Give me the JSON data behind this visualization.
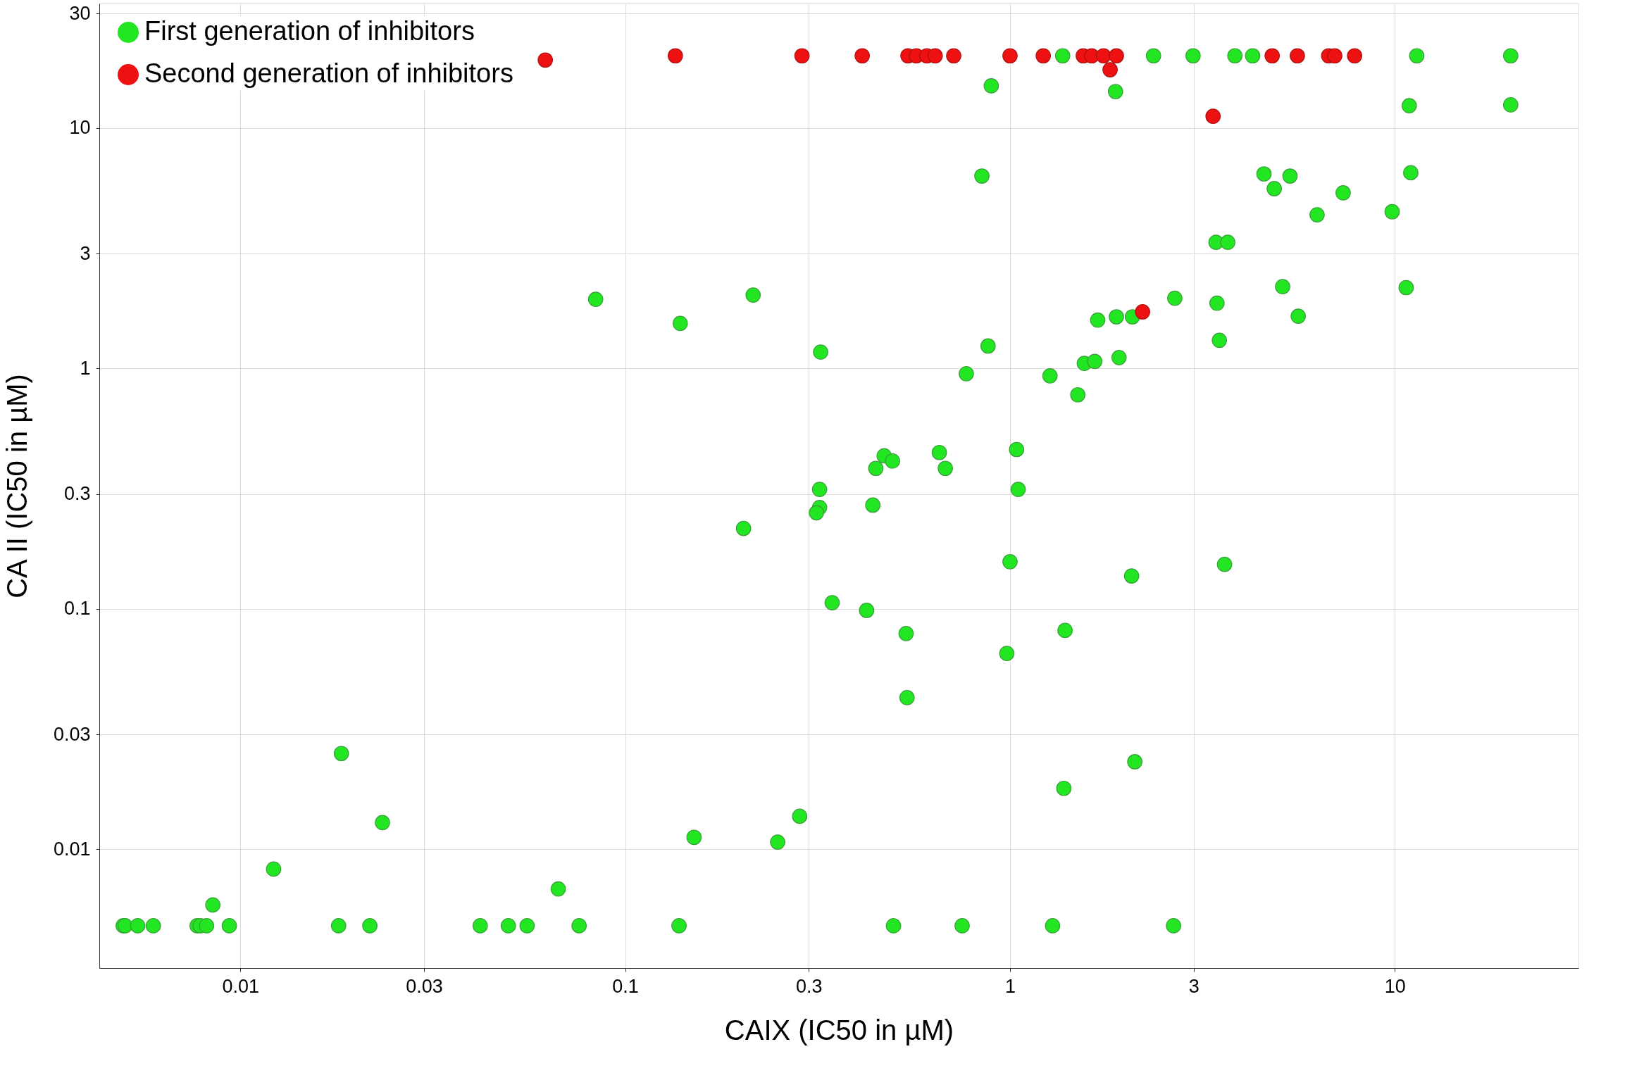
{
  "chart_data": {
    "type": "scatter",
    "xlabel": "CAIX (IC50 in µM)",
    "ylabel": "CA II (IC50 in µM)",
    "log": "xy",
    "grid": true,
    "legend": "top left",
    "marker": "circle",
    "xlim": [
      0.0043,
      30
    ],
    "ylim": [
      0.0032,
      33
    ],
    "xticks": [
      0.01,
      0.03,
      0.1,
      0.3,
      1,
      3,
      10
    ],
    "yticks": [
      0.01,
      0.03,
      0.1,
      0.3,
      1,
      3,
      10,
      30
    ],
    "series": [
      {
        "name": "First generation of inhibitors",
        "color": "#22e622",
        "x": [
          1.37,
          2.36,
          2.99,
          3.84,
          4.27,
          11.4,
          20.0,
          0.894,
          1.88,
          10.9,
          20.0,
          0.845,
          4.57,
          4.86,
          5.34,
          11.0,
          7.34,
          6.28,
          9.84,
          3.43,
          3.68,
          0.0838,
          0.215,
          0.139,
          2.68,
          3.45,
          5.11,
          10.7,
          5.61,
          1.69,
          1.89,
          2.08,
          0.877,
          3.5,
          0.322,
          0.77,
          1.27,
          1.56,
          1.66,
          1.92,
          1.5,
          1.04,
          0.471,
          0.495,
          0.655,
          0.448,
          0.679,
          0.32,
          1.05,
          0.32,
          0.314,
          0.44,
          0.203,
          1.0,
          3.61,
          2.07,
          0.345,
          0.424,
          0.537,
          1.39,
          0.981,
          0.54,
          0.0183,
          2.11,
          0.0234,
          1.38,
          0.284,
          0.151,
          0.249,
          0.0122,
          0.00848,
          0.067,
          0.00496,
          0.00502,
          0.00541,
          0.00594,
          0.00772,
          0.00787,
          0.00817,
          0.00936,
          0.018,
          0.0217,
          0.042,
          0.0497,
          0.0556,
          0.0759,
          0.138,
          0.498,
          0.751,
          1.29,
          2.66
        ],
        "values": [
          20,
          20,
          20,
          20,
          20,
          20,
          20,
          15.0,
          14.2,
          12.4,
          12.5,
          6.32,
          6.45,
          5.6,
          6.32,
          6.52,
          5.38,
          4.36,
          4.49,
          3.35,
          3.35,
          1.94,
          2.02,
          1.54,
          1.96,
          1.87,
          2.19,
          2.17,
          1.65,
          1.59,
          1.64,
          1.64,
          1.24,
          1.31,
          1.17,
          0.951,
          0.932,
          1.05,
          1.07,
          1.11,
          0.777,
          0.46,
          0.433,
          0.412,
          0.447,
          0.384,
          0.384,
          0.314,
          0.314,
          0.264,
          0.251,
          0.27,
          0.216,
          0.157,
          0.153,
          0.137,
          0.106,
          0.0985,
          0.0789,
          0.0813,
          0.0652,
          0.0427,
          0.025,
          0.0231,
          0.0129,
          0.0179,
          0.0137,
          0.0112,
          0.0107,
          0.00826,
          0.00586,
          0.00683,
          0.0048,
          0.0048,
          0.0048,
          0.0048,
          0.0048,
          0.0048,
          0.0048,
          0.0048,
          0.0048,
          0.0048,
          0.0048,
          0.0048,
          0.0048,
          0.0048,
          0.0048,
          0.0048,
          0.0048,
          0.0048,
          0.0048
        ]
      },
      {
        "name": "Second generation of  inhibitors",
        "color": "#ee1111",
        "x": [
          0.062,
          0.135,
          0.288,
          0.413,
          0.543,
          0.571,
          0.608,
          0.639,
          0.714,
          1.0,
          1.22,
          1.55,
          1.63,
          1.75,
          1.89,
          4.8,
          5.58,
          6.73,
          6.98,
          7.86,
          1.82,
          3.37,
          2.21
        ],
        "values": [
          19.2,
          20,
          20,
          20,
          20,
          20,
          20,
          20,
          20,
          20,
          20,
          20,
          20,
          20,
          20,
          20,
          20,
          20,
          20,
          20,
          17.5,
          11.2,
          1.72
        ]
      }
    ]
  }
}
